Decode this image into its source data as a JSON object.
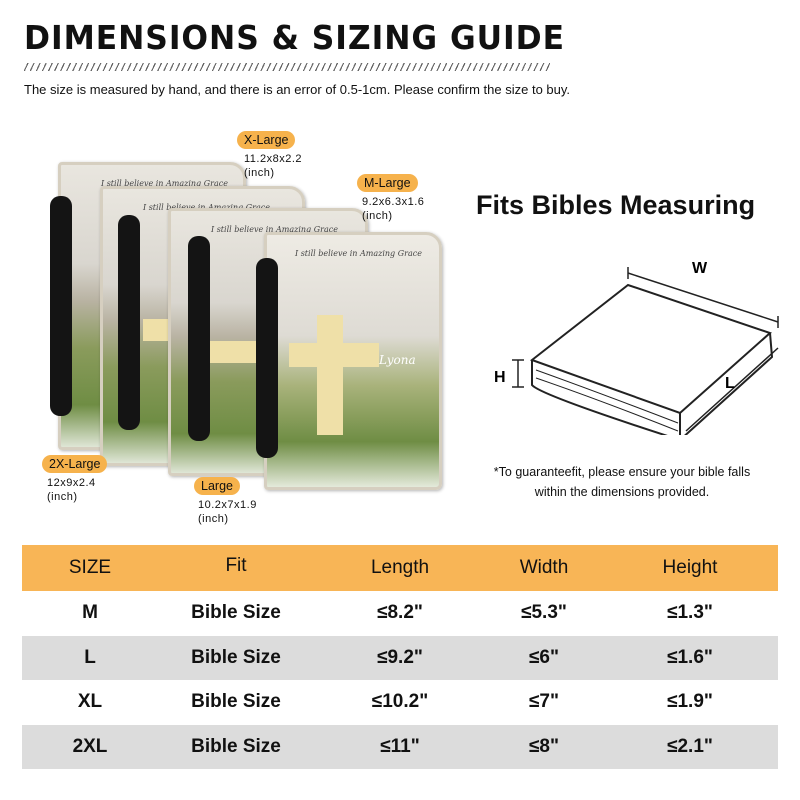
{
  "header": {
    "title": "DIMENSIONS & SIZING GUIDE",
    "note": "The size is measured by hand, and there is an error of 0.5-1cm. Please confirm the size to buy."
  },
  "sizes": [
    {
      "label": "X-Large",
      "dims": "11.2x8x2.2",
      "unit": "(inch)"
    },
    {
      "label": "M-Large",
      "dims": "9.2x6.3x1.6",
      "unit": "(inch)"
    },
    {
      "label": "2X-Large",
      "dims": "12x9x2.4",
      "unit": "(inch)"
    },
    {
      "label": "Large",
      "dims": "10.2x7x1.9",
      "unit": "(inch)"
    }
  ],
  "cover_text": {
    "line1": "I still believe in Amazing Grace",
    "name": "Lyona"
  },
  "measure": {
    "title": "Fits Bibles Measuring",
    "w": "W",
    "h": "H",
    "l": "L",
    "footnote1": "*To guaranteefit, please ensure your bible falls",
    "footnote2": "within the dimensions provided."
  },
  "table": {
    "headers": [
      "SIZE",
      "Fit",
      "Length",
      "Width",
      "Height"
    ],
    "rows": [
      [
        "M",
        "Bible Size",
        "≤8.2\"",
        "≤5.3\"",
        "≤1.3\""
      ],
      [
        "L",
        "Bible Size",
        "≤9.2\"",
        "≤6\"",
        "≤1.6\""
      ],
      [
        "XL",
        "Bible Size",
        "≤10.2\"",
        "≤7\"",
        "≤1.9\""
      ],
      [
        "2XL",
        "Bible Size",
        "≤11\"",
        "≤8\"",
        "≤2.1\""
      ]
    ]
  },
  "colors": {
    "accent": "#f8b556",
    "row_alt": "#dcdcdc"
  }
}
